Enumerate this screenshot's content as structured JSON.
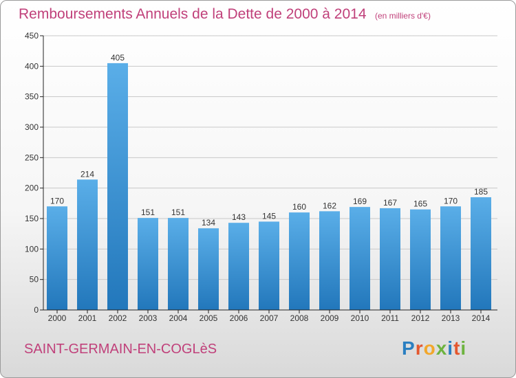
{
  "header": {
    "title": "Remboursements Annuels de la Dette de 2000 à 2014",
    "subtitle": "(en milliers d'€)"
  },
  "footer": {
    "commune": "SAINT-GERMAIN-EN-COGLèS",
    "logo_text": "Proxiti",
    "logo_colors": [
      "#2a7fc1",
      "#e4572e",
      "#f2a72b",
      "#6db33f",
      "#2a7fc1",
      "#e4572e",
      "#6db33f"
    ]
  },
  "colors": {
    "bar_top": "#5aaee8",
    "bar_bottom": "#2277bb",
    "title": "#c0407a",
    "grid": "#c8c8c8",
    "axis": "#222222"
  },
  "chart_data": {
    "type": "bar",
    "categories": [
      "2000",
      "2001",
      "2002",
      "2003",
      "2004",
      "2005",
      "2006",
      "2007",
      "2008",
      "2009",
      "2010",
      "2011",
      "2012",
      "2013",
      "2014"
    ],
    "values": [
      170,
      214,
      405,
      151,
      151,
      134,
      143,
      145,
      160,
      162,
      169,
      167,
      165,
      170,
      185
    ],
    "ylim": [
      0,
      450
    ],
    "yticks": [
      0,
      50,
      100,
      150,
      200,
      250,
      300,
      350,
      400,
      450
    ],
    "grid": true,
    "data_labels": true
  }
}
